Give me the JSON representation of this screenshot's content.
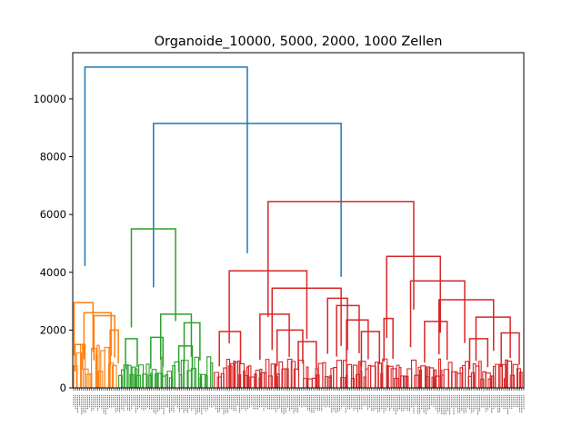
{
  "chart_data": {
    "type": "dendrogram",
    "title": "Organoide_10000, 5000, 2000, 1000 Zellen",
    "xlabel": "",
    "ylabel": "",
    "ylim": [
      0,
      11600
    ],
    "y_ticks": [
      0,
      2000,
      4000,
      6000,
      8000,
      10000
    ],
    "x_range": [
      0,
      1000
    ],
    "grid": false,
    "colors": {
      "root": "#1f77b4",
      "cluster_orange": "#ff7f0e",
      "cluster_green": "#2ca02c",
      "cluster_red": "#d62728",
      "leaf_labels": "#555555"
    },
    "merges": [
      {
        "name": "root",
        "color": "root",
        "height": 11100,
        "x_left": 27,
        "x_right": 387
      },
      {
        "name": "blue-inner",
        "color": "root",
        "height": 9150,
        "x_left": 179,
        "x_right": 595
      },
      {
        "name": "red-top",
        "color": "cluster_red",
        "height": 6450,
        "x_left": 433,
        "x_right": 756
      },
      {
        "name": "green-top",
        "color": "cluster_green",
        "height": 5500,
        "x_left": 130,
        "x_right": 228
      },
      {
        "name": "red-left",
        "color": "cluster_red",
        "height": 4050,
        "x_left": 347,
        "x_right": 519
      },
      {
        "name": "red-right",
        "color": "cluster_red",
        "height": 4550,
        "x_left": 696,
        "x_right": 815
      },
      {
        "name": "red-rr",
        "color": "cluster_red",
        "height": 3700,
        "x_left": 749,
        "x_right": 869
      },
      {
        "name": "red-rr2",
        "color": "cluster_red",
        "height": 3050,
        "x_left": 812,
        "x_right": 933
      },
      {
        "name": "red-rr3",
        "color": "cluster_red",
        "height": 2450,
        "x_left": 894,
        "x_right": 970
      },
      {
        "name": "red-lr",
        "color": "cluster_red",
        "height": 3450,
        "x_left": 442,
        "x_right": 595
      },
      {
        "name": "red-lr2",
        "color": "cluster_red",
        "height": 3100,
        "x_left": 565,
        "x_right": 609
      },
      {
        "name": "red-lr3",
        "color": "cluster_red",
        "height": 2850,
        "x_left": 585,
        "x_right": 635
      },
      {
        "name": "red-mid1",
        "color": "cluster_red",
        "height": 2550,
        "x_left": 415,
        "x_right": 480
      },
      {
        "name": "red-mid2",
        "color": "cluster_red",
        "height": 2400,
        "x_left": 690,
        "x_right": 710
      },
      {
        "name": "red-mid3",
        "color": "cluster_red",
        "height": 2300,
        "x_left": 780,
        "x_right": 830
      },
      {
        "name": "red-mid4",
        "color": "cluster_red",
        "height": 2350,
        "x_left": 607,
        "x_right": 655
      },
      {
        "name": "red-mid5",
        "color": "cluster_red",
        "height": 2000,
        "x_left": 453,
        "x_right": 510
      },
      {
        "name": "red-mid6",
        "color": "cluster_red",
        "height": 1950,
        "x_left": 640,
        "x_right": 680
      },
      {
        "name": "red-mid7",
        "color": "cluster_red",
        "height": 1950,
        "x_left": 325,
        "x_right": 372
      },
      {
        "name": "red-mid8",
        "color": "cluster_red",
        "height": 1900,
        "x_left": 950,
        "x_right": 990
      },
      {
        "name": "red-mid9",
        "color": "cluster_red",
        "height": 1700,
        "x_left": 880,
        "x_right": 920
      },
      {
        "name": "red-mid10",
        "color": "cluster_red",
        "height": 1600,
        "x_left": 500,
        "x_right": 540
      },
      {
        "name": "green-r",
        "color": "cluster_green",
        "height": 2550,
        "x_left": 195,
        "x_right": 263
      },
      {
        "name": "green-r2",
        "color": "cluster_green",
        "height": 2250,
        "x_left": 247,
        "x_right": 282
      },
      {
        "name": "green-l",
        "color": "cluster_green",
        "height": 1700,
        "x_left": 117,
        "x_right": 143
      },
      {
        "name": "green-m",
        "color": "cluster_green",
        "height": 1750,
        "x_left": 173,
        "x_right": 200
      },
      {
        "name": "green-m2",
        "color": "cluster_green",
        "height": 1450,
        "x_left": 235,
        "x_right": 265
      },
      {
        "name": "orange-top",
        "color": "cluster_orange",
        "height": 2950,
        "x_left": 3,
        "x_right": 45
      },
      {
        "name": "orange-r",
        "color": "cluster_orange",
        "height": 2600,
        "x_left": 25,
        "x_right": 85
      },
      {
        "name": "orange-r2",
        "color": "cluster_orange",
        "height": 2500,
        "x_left": 47,
        "x_right": 93
      },
      {
        "name": "orange-r3",
        "color": "cluster_orange",
        "height": 2000,
        "x_left": 83,
        "x_right": 101
      },
      {
        "name": "orange-l",
        "color": "cluster_orange",
        "height": 1500,
        "x_left": 5,
        "x_right": 22
      }
    ],
    "leaf_groups": [
      {
        "color": "cluster_orange",
        "x_start": 0,
        "x_end": 100
      },
      {
        "color": "cluster_green",
        "x_start": 100,
        "x_end": 312
      },
      {
        "color": "cluster_red",
        "x_start": 312,
        "x_end": 1000
      }
    ]
  }
}
